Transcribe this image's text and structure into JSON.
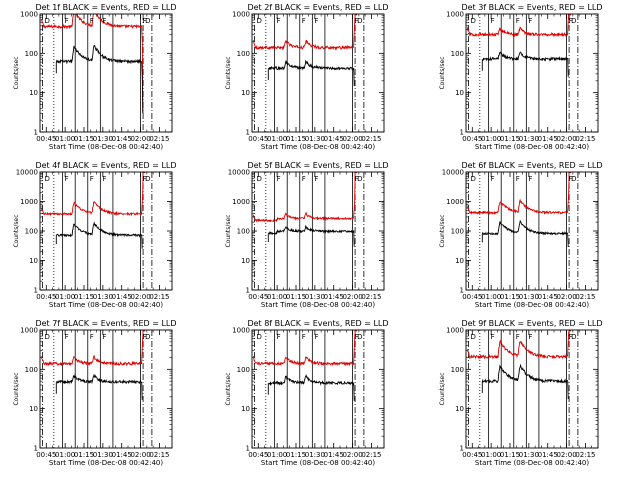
{
  "layout": {
    "rows": 3,
    "cols": 3
  },
  "chart_data": [
    {
      "type": "line",
      "title": "Det 1f BLACK = Events, RED = LLD",
      "xlabel": "Start Time (08-Dec-08 00:42:40)",
      "ylabel": "Counts/sec",
      "xticks": [
        "00:45",
        "01:00",
        "01:15",
        "01:30",
        "01:45",
        "02:00",
        "02:15"
      ],
      "xlim_minutes": [
        40,
        145
      ],
      "yscale": "log",
      "ylim": [
        1,
        1000
      ],
      "yticks": [
        "1",
        "10",
        "100",
        "1000"
      ],
      "event_mode": "rise_decay",
      "red_level": 480,
      "black_level": 62,
      "peaks_minutes": [
        67,
        83
      ],
      "red_start_minutes": 41,
      "red_end_minutes": 121,
      "black_start_minutes": 53,
      "black_end_minutes": 121,
      "end_behavior": "drop",
      "legend_letters": [
        "D",
        "F",
        "F",
        "F",
        "F",
        "D"
      ],
      "solid_lines_minutes": [
        58,
        68,
        78,
        88,
        98,
        120
      ],
      "dotted_lines_minutes": [
        51
      ],
      "dashdot_lines_minutes": [
        42,
        122,
        129
      ],
      "series": [
        {
          "name": "BLACK = Events",
          "color": "#000000"
        },
        {
          "name": "RED = LLD",
          "color": "#dd0000"
        }
      ]
    },
    {
      "type": "line",
      "title": "Det 2f BLACK = Events, RED = LLD",
      "xlabel": "Start Time (08-Dec-08 00:42:40)",
      "ylabel": "Counts/sec",
      "xticks": [
        "00:45",
        "01:00",
        "01:15",
        "01:30",
        "01:45",
        "02:00",
        "02:15"
      ],
      "xlim_minutes": [
        40,
        145
      ],
      "yscale": "log",
      "ylim": [
        1,
        1000
      ],
      "yticks": [
        "1",
        "10",
        "100",
        "1000"
      ],
      "event_mode": "bumps",
      "red_level": 140,
      "black_level": 42,
      "peaks_minutes": [
        67,
        83
      ],
      "red_start_minutes": 41,
      "red_end_minutes": 121,
      "black_start_minutes": 53,
      "black_end_minutes": 121,
      "end_behavior": "rise",
      "legend_letters": [
        "D",
        "F",
        "F",
        "F",
        "F",
        "D"
      ],
      "solid_lines_minutes": [
        58,
        68,
        78,
        88,
        98,
        120
      ],
      "dotted_lines_minutes": [
        51
      ],
      "dashdot_lines_minutes": [
        42,
        122,
        129
      ],
      "series": [
        {
          "name": "BLACK = Events",
          "color": "#000000"
        },
        {
          "name": "RED = LLD",
          "color": "#dd0000"
        }
      ]
    },
    {
      "type": "line",
      "title": "Det 3f BLACK = Events, RED = LLD",
      "xlabel": "Start Time (08-Dec-08 00:42:40)",
      "ylabel": "Counts/sec",
      "xticks": [
        "00:45",
        "01:00",
        "01:15",
        "01:30",
        "01:45",
        "02:00",
        "02:15"
      ],
      "xlim_minutes": [
        40,
        145
      ],
      "yscale": "log",
      "ylim": [
        1,
        1000
      ],
      "yticks": [
        "1",
        "10",
        "100",
        "1000"
      ],
      "event_mode": "bumps",
      "red_level": 300,
      "black_level": 72,
      "peaks_minutes": [
        67,
        83
      ],
      "red_start_minutes": 41,
      "red_end_minutes": 121,
      "black_start_minutes": 53,
      "black_end_minutes": 121,
      "end_behavior": "rise",
      "legend_letters": [
        "D",
        "F",
        "F",
        "F",
        "F",
        "D"
      ],
      "solid_lines_minutes": [
        58,
        68,
        78,
        88,
        98,
        120
      ],
      "dotted_lines_minutes": [
        51
      ],
      "dashdot_lines_minutes": [
        42,
        122,
        129
      ],
      "series": [
        {
          "name": "BLACK = Events",
          "color": "#000000"
        },
        {
          "name": "RED = LLD",
          "color": "#dd0000"
        }
      ]
    },
    {
      "type": "line",
      "title": "Det 4f BLACK = Events, RED = LLD",
      "xlabel": "Start Time (08-Dec-08 00:42:40)",
      "ylabel": "Counts/sec",
      "xticks": [
        "00:45",
        "01:00",
        "01:15",
        "01:30",
        "01:45",
        "02:00",
        "02:15"
      ],
      "xlim_minutes": [
        40,
        145
      ],
      "yscale": "log",
      "ylim": [
        1,
        10000
      ],
      "yticks": [
        "1",
        "10",
        "100",
        "1000",
        "10000"
      ],
      "event_mode": "rise_decay",
      "red_level": 380,
      "black_level": 72,
      "peaks_minutes": [
        67,
        83
      ],
      "red_start_minutes": 41,
      "red_end_minutes": 121,
      "black_start_minutes": 53,
      "black_end_minutes": 121,
      "end_behavior": "rise",
      "legend_letters": [
        "D",
        "F",
        "F",
        "F",
        "F",
        "D"
      ],
      "solid_lines_minutes": [
        58,
        68,
        78,
        88,
        98,
        120
      ],
      "dotted_lines_minutes": [
        51
      ],
      "dashdot_lines_minutes": [
        42,
        122,
        129
      ],
      "series": [
        {
          "name": "BLACK = Events",
          "color": "#000000"
        },
        {
          "name": "RED = LLD",
          "color": "#dd0000"
        }
      ]
    },
    {
      "type": "line",
      "title": "Det 5f BLACK = Events, RED = LLD",
      "xlabel": "Start Time (08-Dec-08 00:42:40)",
      "ylabel": "Counts/sec",
      "xticks": [
        "00:45",
        "01:00",
        "01:15",
        "01:30",
        "01:45",
        "02:00",
        "02:15"
      ],
      "xlim_minutes": [
        40,
        145
      ],
      "yscale": "log",
      "ylim": [
        1,
        10000
      ],
      "yticks": [
        "1",
        "10",
        "100",
        "1000",
        "10000"
      ],
      "event_mode": "plateau",
      "red_level": 230,
      "black_level": 85,
      "peaks_minutes": [
        67,
        83
      ],
      "red_start_minutes": 41,
      "red_end_minutes": 121,
      "black_start_minutes": 53,
      "black_end_minutes": 121,
      "end_behavior": "rise",
      "legend_letters": [
        "D",
        "F",
        "F",
        "F",
        "F",
        "D"
      ],
      "solid_lines_minutes": [
        58,
        68,
        78,
        88,
        98,
        120
      ],
      "dotted_lines_minutes": [
        51
      ],
      "dashdot_lines_minutes": [
        42,
        122,
        129
      ],
      "series": [
        {
          "name": "BLACK = Events",
          "color": "#000000"
        },
        {
          "name": "RED = LLD",
          "color": "#dd0000"
        }
      ]
    },
    {
      "type": "line",
      "title": "Det 6f BLACK = Events, RED = LLD",
      "xlabel": "Start Time (08-Dec-08 00:42:40)",
      "ylabel": "Counts/sec",
      "xticks": [
        "00:45",
        "01:00",
        "01:15",
        "01:30",
        "01:45",
        "02:00",
        "02:15"
      ],
      "xlim_minutes": [
        40,
        145
      ],
      "yscale": "log",
      "ylim": [
        1,
        10000
      ],
      "yticks": [
        "1",
        "10",
        "100",
        "1000",
        "10000"
      ],
      "event_mode": "rise_decay",
      "red_level": 420,
      "black_level": 82,
      "peaks_minutes": [
        67,
        83
      ],
      "red_start_minutes": 41,
      "red_end_minutes": 121,
      "black_start_minutes": 53,
      "black_end_minutes": 121,
      "end_behavior": "rise",
      "legend_letters": [
        "D",
        "F",
        "F",
        "F",
        "F",
        "D"
      ],
      "solid_lines_minutes": [
        58,
        68,
        78,
        88,
        98,
        120
      ],
      "dotted_lines_minutes": [
        51
      ],
      "dashdot_lines_minutes": [
        42,
        122,
        129
      ],
      "series": [
        {
          "name": "BLACK = Events",
          "color": "#000000"
        },
        {
          "name": "RED = LLD",
          "color": "#dd0000"
        }
      ]
    },
    {
      "type": "line",
      "title": "Det 7f BLACK = Events, RED = LLD",
      "xlabel": "Start Time (08-Dec-08 00:42:40)",
      "ylabel": "Counts/sec",
      "xticks": [
        "00:45",
        "01:00",
        "01:15",
        "01:30",
        "01:45",
        "02:00",
        "02:15"
      ],
      "xlim_minutes": [
        40,
        145
      ],
      "yscale": "log",
      "ylim": [
        1,
        1000
      ],
      "yticks": [
        "1",
        "10",
        "100",
        "1000"
      ],
      "event_mode": "bumps",
      "red_level": 140,
      "black_level": 48,
      "peaks_minutes": [
        67,
        83
      ],
      "red_start_minutes": 41,
      "red_end_minutes": 121,
      "black_start_minutes": 53,
      "black_end_minutes": 121,
      "end_behavior": "rise",
      "legend_letters": [
        "D",
        "F",
        "F",
        "F",
        "F",
        "D"
      ],
      "solid_lines_minutes": [
        58,
        68,
        78,
        88,
        98,
        120
      ],
      "dotted_lines_minutes": [
        51
      ],
      "dashdot_lines_minutes": [
        42,
        122,
        129
      ],
      "series": [
        {
          "name": "BLACK = Events",
          "color": "#000000"
        },
        {
          "name": "RED = LLD",
          "color": "#dd0000"
        }
      ]
    },
    {
      "type": "line",
      "title": "Det 8f BLACK = Events, RED = LLD",
      "xlabel": "Start Time (08-Dec-08 00:42:40)",
      "ylabel": "Counts/sec",
      "xticks": [
        "00:45",
        "01:00",
        "01:15",
        "01:30",
        "01:45",
        "02:00",
        "02:15"
      ],
      "xlim_minutes": [
        40,
        145
      ],
      "yscale": "log",
      "ylim": [
        1,
        1000
      ],
      "yticks": [
        "1",
        "10",
        "100",
        "1000"
      ],
      "event_mode": "bumps",
      "red_level": 140,
      "black_level": 45,
      "peaks_minutes": [
        67,
        83
      ],
      "red_start_minutes": 41,
      "red_end_minutes": 121,
      "black_start_minutes": 53,
      "black_end_minutes": 121,
      "end_behavior": "rise",
      "legend_letters": [
        "D",
        "F",
        "F",
        "F",
        "F",
        "D"
      ],
      "solid_lines_minutes": [
        58,
        68,
        78,
        88,
        98,
        120
      ],
      "dotted_lines_minutes": [
        51
      ],
      "dashdot_lines_minutes": [
        42,
        122,
        129
      ],
      "series": [
        {
          "name": "BLACK = Events",
          "color": "#000000"
        },
        {
          "name": "RED = LLD",
          "color": "#dd0000"
        }
      ]
    },
    {
      "type": "line",
      "title": "Det 9f BLACK = Events, RED = LLD",
      "xlabel": "Start Time (08-Dec-08 00:42:40)",
      "ylabel": "Counts/sec",
      "xticks": [
        "00:45",
        "01:00",
        "01:15",
        "01:30",
        "01:45",
        "02:00",
        "02:15"
      ],
      "xlim_minutes": [
        40,
        145
      ],
      "yscale": "log",
      "ylim": [
        1,
        1000
      ],
      "yticks": [
        "1",
        "10",
        "100",
        "1000"
      ],
      "event_mode": "rise_decay",
      "red_level": 210,
      "black_level": 50,
      "peaks_minutes": [
        67,
        83
      ],
      "red_start_minutes": 41,
      "red_end_minutes": 121,
      "black_start_minutes": 53,
      "black_end_minutes": 121,
      "end_behavior": "rise",
      "legend_letters": [
        "D",
        "F",
        "F",
        "F",
        "F",
        "D"
      ],
      "solid_lines_minutes": [
        58,
        68,
        78,
        88,
        98,
        120
      ],
      "dotted_lines_minutes": [
        51
      ],
      "dashdot_lines_minutes": [
        42,
        122,
        129
      ],
      "series": [
        {
          "name": "BLACK = Events",
          "color": "#000000"
        },
        {
          "name": "RED = LLD",
          "color": "#dd0000"
        }
      ]
    }
  ]
}
